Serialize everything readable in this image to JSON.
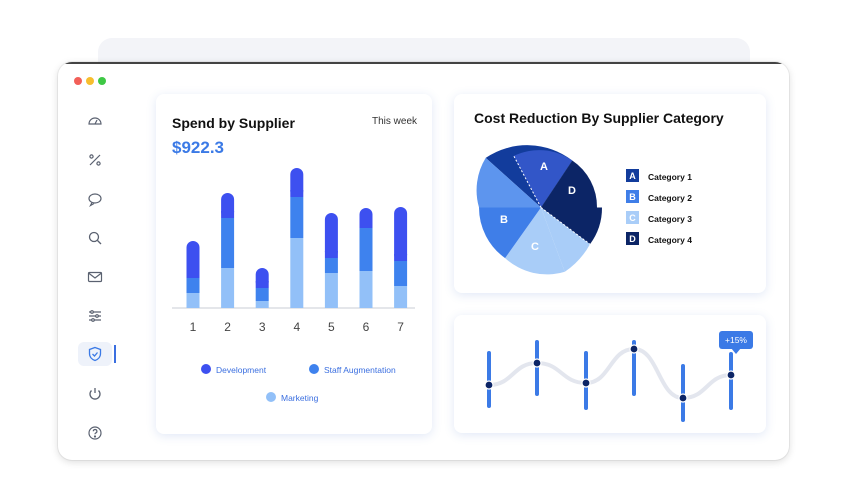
{
  "colors": {
    "accent": "#3b7ae6",
    "development": "#3d50f0",
    "staff_augmentation": "#3e82ee",
    "marketing": "#92c0f8",
    "category_1": "#123c9c",
    "category_2": "#3f7ee8",
    "category_3": "#a9cdf8",
    "category_4": "#0c2566"
  },
  "sidebar": {
    "icons": [
      "gauge-icon",
      "percent-icon",
      "chat-icon",
      "search-icon",
      "mail-icon",
      "sliders-icon",
      "shield-check-icon",
      "power-icon",
      "help-icon"
    ],
    "active": "shield-check-icon"
  },
  "spend": {
    "title": "Spend by Supplier",
    "period": "This week",
    "amount": "$922.3",
    "legend": {
      "development": "Development",
      "staff_augmentation": "Staff Augmentation",
      "marketing": "Marketing"
    }
  },
  "cost": {
    "title": "Cost Reduction By Supplier Category",
    "categories": [
      {
        "letter": "A",
        "label": "Category 1"
      },
      {
        "letter": "B",
        "label": "Category 2"
      },
      {
        "letter": "C",
        "label": "Category 3"
      },
      {
        "letter": "D",
        "label": "Category 4"
      }
    ]
  },
  "trend": {
    "badge": "+15%"
  },
  "chart_data": [
    {
      "type": "bar",
      "stacked": true,
      "title": "Spend by Supplier",
      "categories": [
        "1",
        "2",
        "3",
        "4",
        "5",
        "6",
        "7"
      ],
      "series": [
        {
          "name": "Marketing",
          "values": [
            15,
            40,
            7,
            70,
            35,
            37,
            22
          ]
        },
        {
          "name": "Staff Augmentation",
          "values": [
            15,
            50,
            13,
            41,
            15,
            43,
            25
          ]
        },
        {
          "name": "Development",
          "values": [
            37,
            25,
            20,
            29,
            45,
            20,
            54
          ]
        }
      ],
      "ylim": [
        0,
        140
      ],
      "grid": false,
      "legend": "bottom"
    },
    {
      "type": "pie",
      "title": "Cost Reduction By Supplier Category",
      "slices": [
        {
          "label": "A",
          "category": "Category 1",
          "color": "#123c9c"
        },
        {
          "label": "D",
          "category": "Category 4",
          "color": "#0c2566"
        },
        {
          "label": "C",
          "category": "Category 3",
          "color": "#a9cdf8"
        },
        {
          "label": "B",
          "category": "Category 2",
          "color": "#3f7ee8"
        }
      ],
      "legend": "right"
    },
    {
      "type": "line",
      "x": [
        1,
        2,
        3,
        4,
        5,
        6
      ],
      "values": [
        0.3,
        0.55,
        0.33,
        0.6,
        0.1,
        0.45
      ],
      "annotation": "+15%"
    }
  ]
}
